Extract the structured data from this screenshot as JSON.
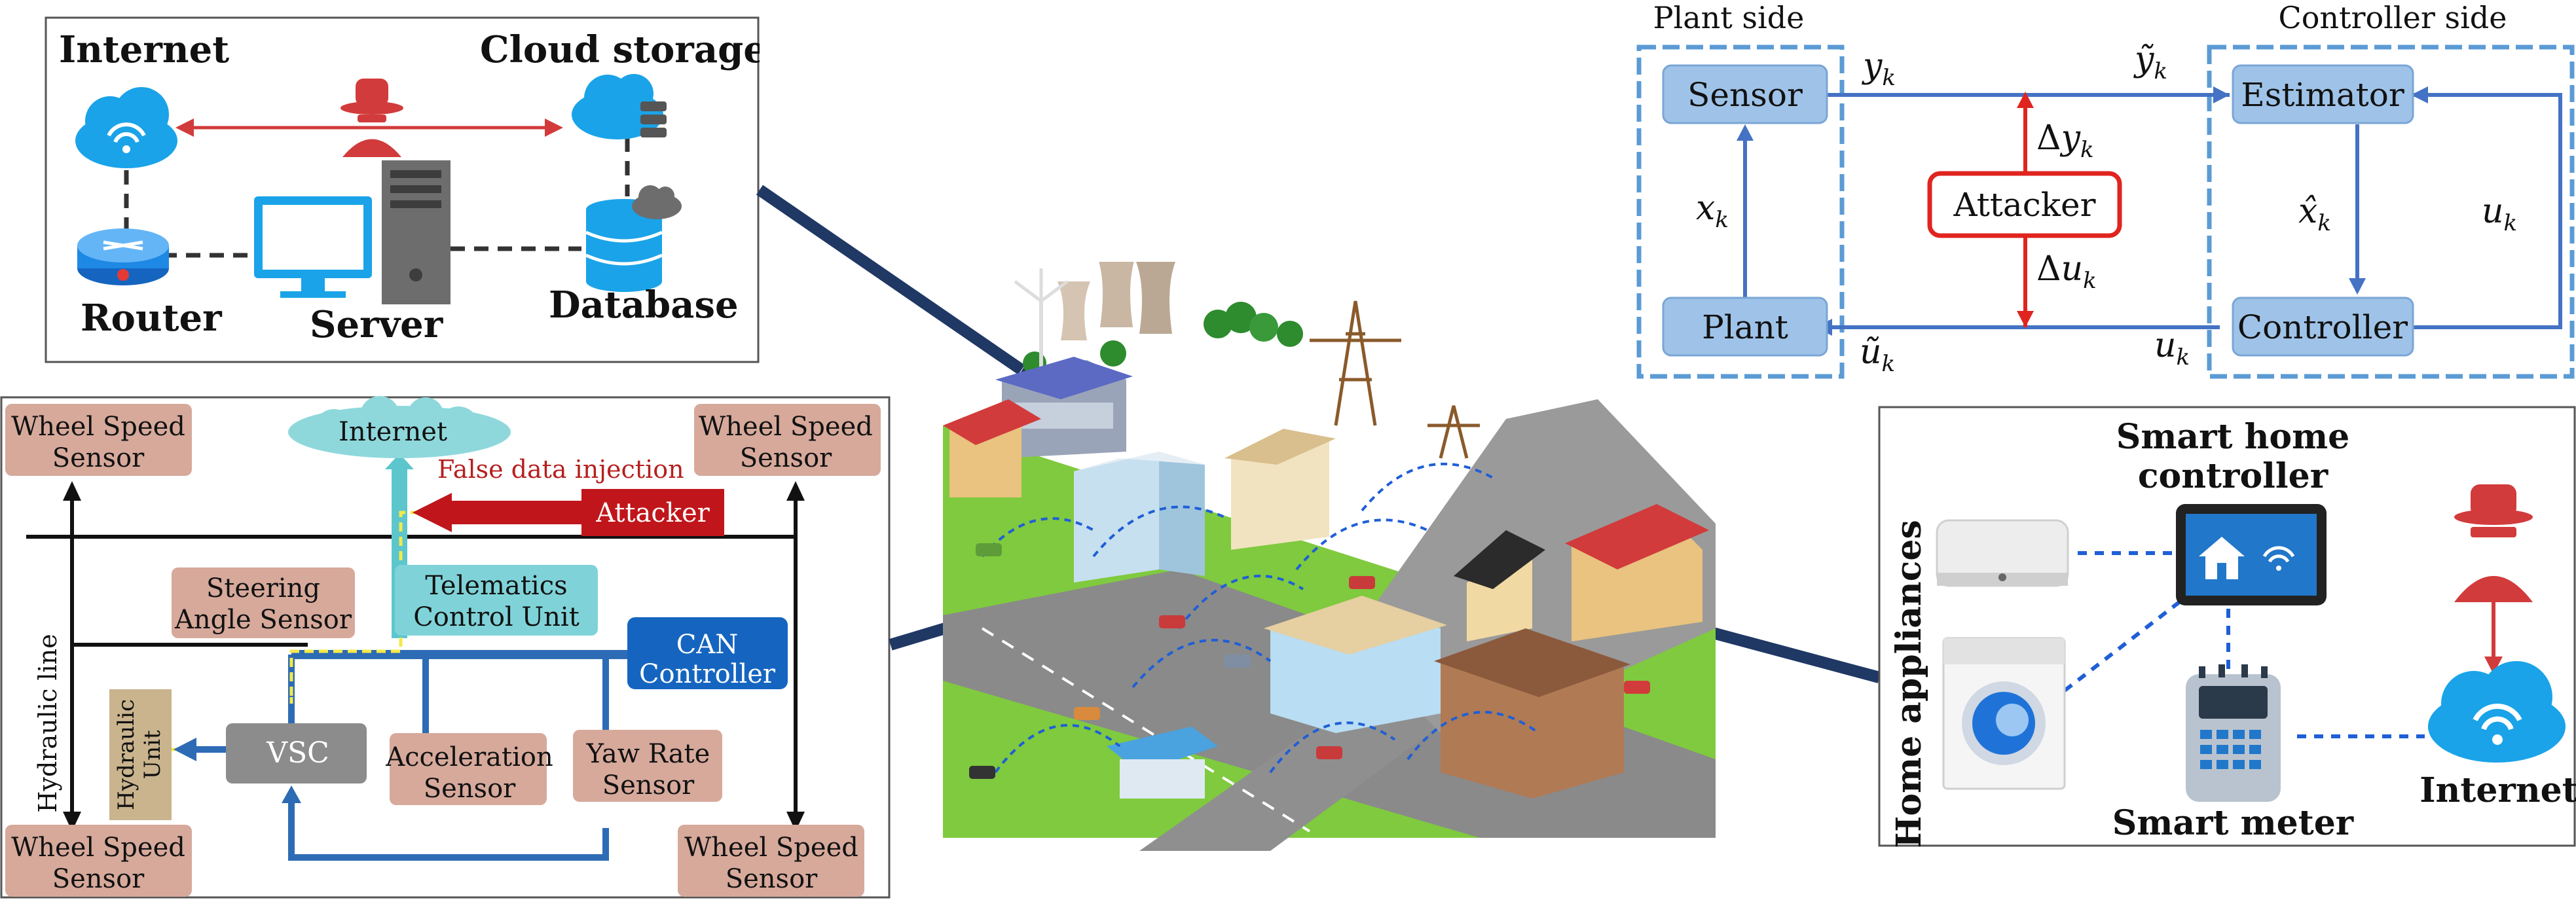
{
  "it_panel": {
    "internet": "Internet",
    "cloud_storage": "Cloud storage",
    "router": "Router",
    "server": "Server",
    "database": "Database"
  },
  "car_panel": {
    "wheel_tl": [
      "Wheel Speed",
      "Sensor"
    ],
    "wheel_tr": [
      "Wheel Speed",
      "Sensor"
    ],
    "wheel_bl": [
      "Wheel Speed",
      "Sensor"
    ],
    "wheel_br": [
      "Wheel Speed",
      "Sensor"
    ],
    "internet": "Internet",
    "false_data_injection": "False data injection",
    "attacker": "Attacker",
    "steering": [
      "Steering",
      "Angle Sensor"
    ],
    "telematics": [
      "Telematics",
      "Control Unit"
    ],
    "can": [
      "CAN",
      "Controller"
    ],
    "hydraulic_line": "Hydraulic line",
    "hydraulic_unit": [
      "Hydraulic",
      "Unit"
    ],
    "vsc": "VSC",
    "acceleration": [
      "Acceleration",
      "Sensor"
    ],
    "yaw": [
      "Yaw Rate",
      "Sensor"
    ]
  },
  "control_panel": {
    "plant_side": "Plant side",
    "controller_side": "Controller side",
    "sensor": "Sensor",
    "estimator": "Estimator",
    "plant": "Plant",
    "controller": "Controller",
    "attacker": "Attacker",
    "y": "y",
    "k": "k",
    "delta": "Δ",
    "x": "x",
    "u": "u",
    "x_hat": "x̂",
    "y_tilde": "ỹ",
    "u_tilde": "ũ"
  },
  "home_panel": {
    "home_appliances": "Home appliances",
    "smart_home_controller": [
      "Smart home",
      "controller"
    ],
    "smart_meter": "Smart meter",
    "internet": "Internet"
  },
  "colors": {
    "accent_blue": "#1f3864",
    "cloud_blue": "#1aa3e8",
    "attack_red": "#c0292b",
    "brown_box": "#d6a99b",
    "teal_box": "#7fd3d8",
    "can_blue": "#1565c0",
    "control_blue": "#9fc3e8",
    "dashed_frame": "#5b9bd5"
  }
}
